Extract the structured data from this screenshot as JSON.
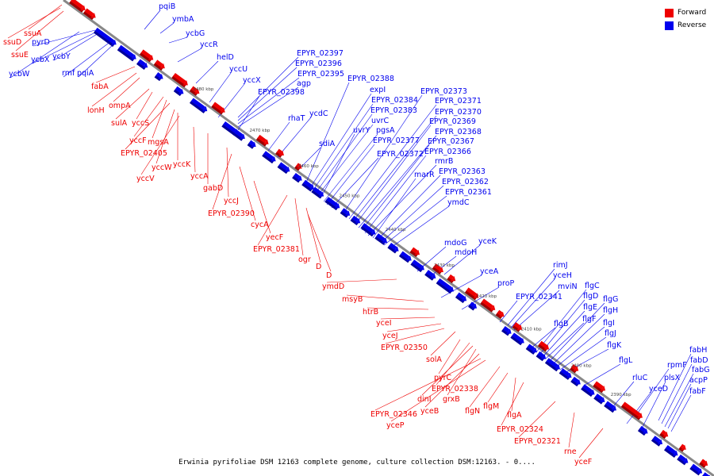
{
  "colors": {
    "forward": "#ee0000",
    "reverse": "#0000ee",
    "axis": "#888888",
    "ruler": "#444444"
  },
  "legend": {
    "forward_label": "Forward",
    "reverse_label": "Reverse"
  },
  "caption": "Erwinia pyrifoliae DSM 12163 complete genome, culture collection DSM:12163. - 0....",
  "ticks": [
    "2480 kbp",
    "2470 kbp",
    "2460 kbp",
    "2450 kbp",
    "2440 kbp",
    "2430 kbp",
    "2420 kbp",
    "2410 kbp",
    "2400 kbp",
    "2390 kbp"
  ],
  "reverse_genes": [
    "pqiB",
    "ymbA",
    "ycbG",
    "yccR",
    "helD",
    "yccU",
    "yccX",
    "EPYR_02397",
    "EPYR_02396",
    "EPYR_02395",
    "agp",
    "EPYR_02398",
    "rhaT",
    "ycdC",
    "EPYR_02388",
    "expI",
    "EPYR_02384",
    "EPYR_02383",
    "uvrC",
    "uvrY",
    "pgsA",
    "EPYR_02377",
    "sdiA",
    "EPYR_02372",
    "EPYR_02373",
    "EPYR_02371",
    "EPYR_02370",
    "EPYR_02369",
    "EPYR_02368",
    "EPYR_02367",
    "EPYR_02366",
    "rmrB",
    "marR",
    "EPYR_02363",
    "EPYR_02362",
    "EPYR_02361",
    "ymdC",
    "mdoG",
    "yceK",
    "mdoH",
    "yceA",
    "proP",
    "rimJ",
    "yceH",
    "mviN",
    "EPYR_02341",
    "flgC",
    "flgD",
    "flgE",
    "flgG",
    "flgH",
    "flgF",
    "flgB",
    "flgI",
    "flgJ",
    "flgK",
    "flgL",
    "rluC",
    "rpmF",
    "fabH",
    "fabD",
    "fabG",
    "plsX",
    "yceD",
    "acpP",
    "fabF",
    "pyrD",
    "ycbX",
    "ycbY",
    "rmf",
    "pqiA",
    "ycbW"
  ],
  "forward_genes": [
    "ssuA",
    "ssuD",
    "ssuE",
    "fabA",
    "lonH",
    "ompA",
    "sulA",
    "yccS",
    "yccF",
    "mgsA",
    "EPYR_02405",
    "yccW",
    "yccK",
    "yccV",
    "yccA",
    "gabD",
    "yccJ",
    "EPYR_02390",
    "cycA",
    "yecF",
    "EPYR_02381",
    "ogr",
    "D",
    "D",
    "ymdD",
    "msyB",
    "htrB",
    "yceI",
    "yceJ",
    "EPYR_02350",
    "solA",
    "pyrC",
    "EPYR_02338",
    "dinI",
    "grxB",
    "yceB",
    "EPYR_02346",
    "yceP",
    "flgN",
    "flgM",
    "flgA",
    "EPYR_02324",
    "EPYR_02321",
    "rne",
    "yceF"
  ]
}
